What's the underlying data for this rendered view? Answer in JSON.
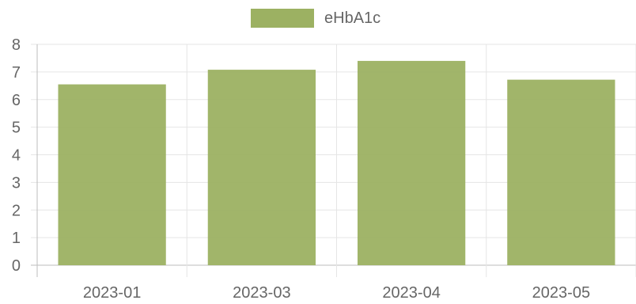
{
  "chart_data": {
    "type": "bar",
    "categories": [
      "2023-01",
      "2023-03",
      "2023-04",
      "2023-05"
    ],
    "series": [
      {
        "name": "eHbA1c",
        "values": [
          6.55,
          7.08,
          7.4,
          6.72
        ],
        "color": "#9cb162"
      }
    ],
    "ylim": [
      0,
      8
    ],
    "yticks": [
      "0",
      "1",
      "2",
      "3",
      "4",
      "5",
      "6",
      "7",
      "8"
    ],
    "grid": true,
    "legend_position": "top"
  }
}
